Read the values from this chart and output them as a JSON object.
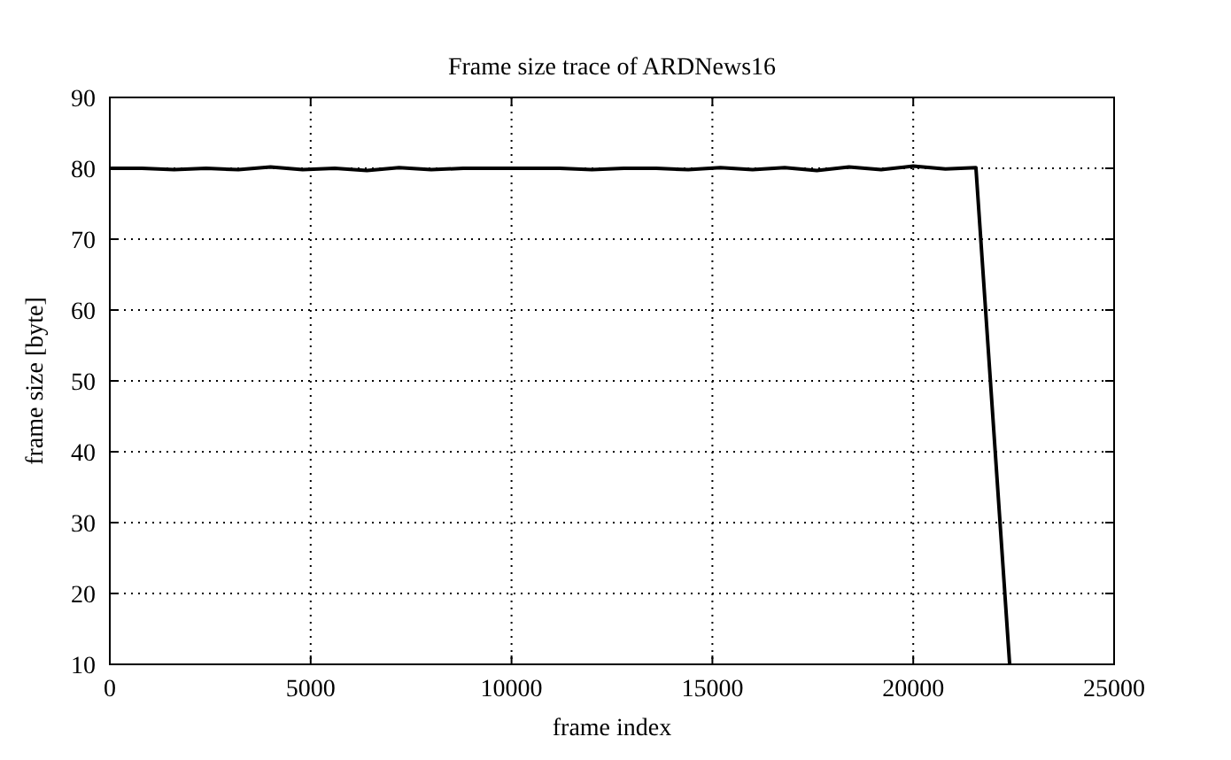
{
  "chart_data": {
    "type": "line",
    "title": "Frame size trace of ARDNews16",
    "xlabel": "frame index",
    "ylabel": "frame size [byte]",
    "x": [
      0,
      800,
      1600,
      2400,
      3200,
      4000,
      4800,
      5600,
      6400,
      7200,
      8000,
      8800,
      9600,
      10400,
      11200,
      12000,
      12800,
      13600,
      14400,
      15200,
      16000,
      16800,
      17600,
      18400,
      19200,
      20000,
      20800,
      21560,
      22400
    ],
    "series": [
      {
        "color": "#000000",
        "values": [
          80,
          80,
          79.8,
          80,
          79.8,
          80.2,
          79.8,
          80,
          79.7,
          80.1,
          79.8,
          80,
          80,
          80,
          80,
          79.8,
          80,
          80,
          79.8,
          80.1,
          79.8,
          80.1,
          79.7,
          80.2,
          79.8,
          80.3,
          79.9,
          80.1,
          10
        ]
      }
    ],
    "xlim": [
      0,
      25000
    ],
    "ylim": [
      10,
      90
    ],
    "xticks": [
      0,
      5000,
      10000,
      15000,
      20000,
      25000
    ],
    "yticks": [
      10,
      20,
      30,
      40,
      50,
      60,
      70,
      80,
      90
    ],
    "grid": true,
    "line_style": "solid",
    "marker": "none"
  }
}
